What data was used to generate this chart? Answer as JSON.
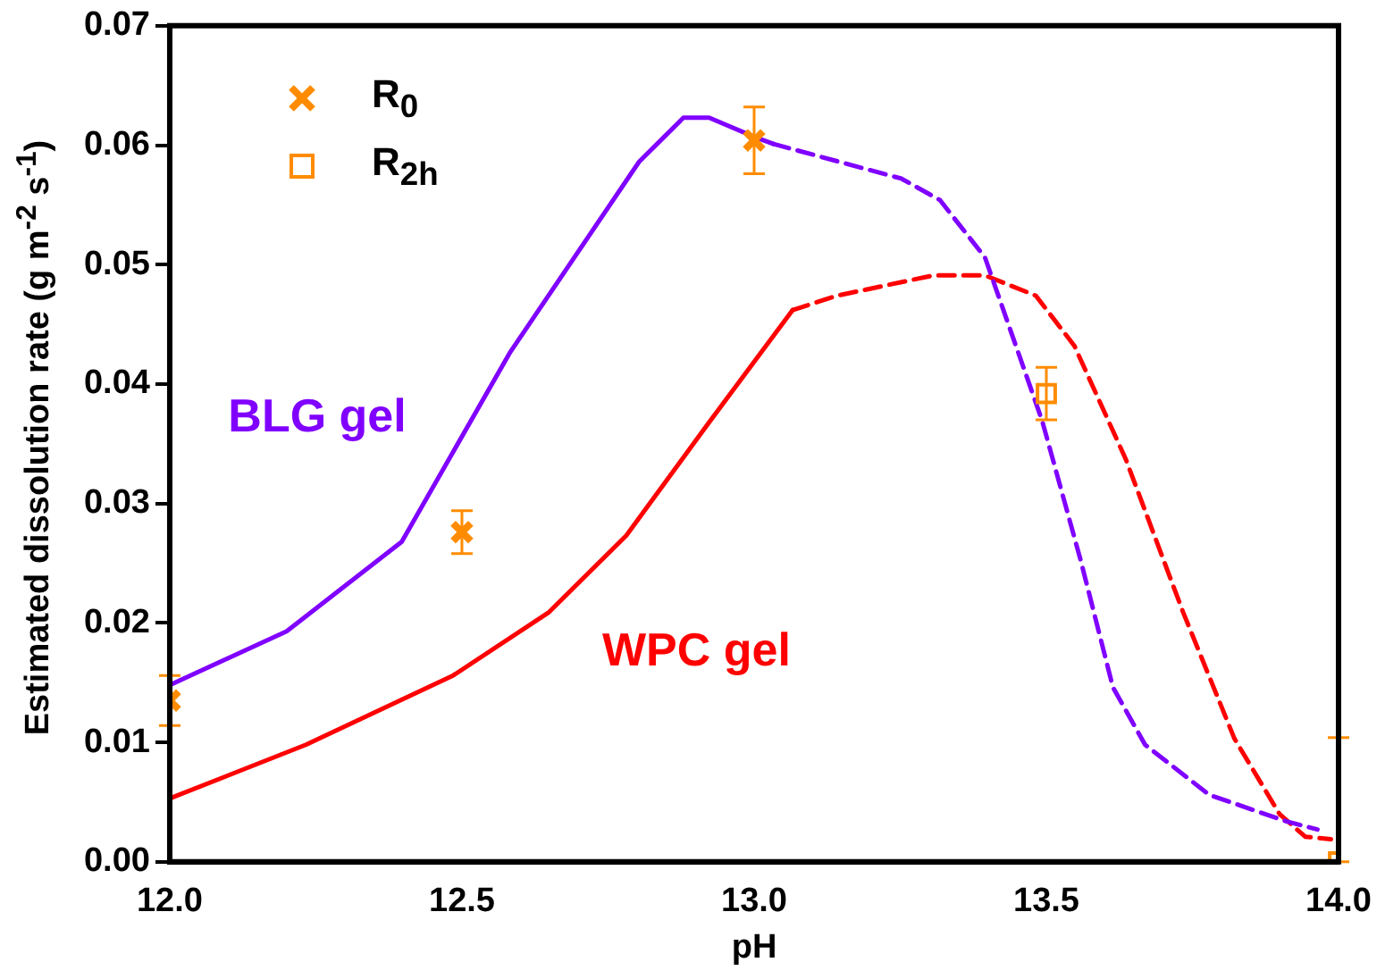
{
  "chart_data": {
    "type": "line",
    "xlabel": "pH",
    "ylabel": "Estimated dissolution rate (g m$^{-2}$ s$^{-1}$)",
    "xlim": [
      12,
      14
    ],
    "xticks": [
      {
        "value": 12,
        "label": "12.0"
      },
      {
        "value": 12.5,
        "label": "12.5"
      },
      {
        "value": 13,
        "label": "13.0"
      },
      {
        "value": 13.5,
        "label": "13.5"
      },
      {
        "value": 14,
        "label": "14.0"
      }
    ],
    "ylim": [
      0,
      0.07
    ],
    "yticks": [
      {
        "value": 0,
        "label": "0.00"
      },
      {
        "value": 0.01,
        "label": "0.01"
      },
      {
        "value": 0.02,
        "label": "0.02"
      },
      {
        "value": 0.03,
        "label": "0.03"
      },
      {
        "value": 0.04,
        "label": "0.04"
      },
      {
        "value": 0.05,
        "label": "0.05"
      },
      {
        "value": 0.06,
        "label": "0.06"
      },
      {
        "value": 0.07,
        "label": "0.07"
      }
    ],
    "grid": false,
    "legend": "top left",
    "series": [
      {
        "name": "BLG gel",
        "type": "line",
        "color": "#8000ff",
        "marker": "none",
        "line_style": "solid",
        "x": [
          12.0,
          12.2,
          12.397,
          12.583,
          12.803,
          12.879,
          12.923,
          13.0,
          13.033
        ],
        "values": [
          0.0148,
          0.0193,
          0.0268,
          0.0427,
          0.0586,
          0.0623,
          0.0623,
          0.0607,
          0.0601
        ]
      },
      {
        "type": "line",
        "color": "#8000ff",
        "marker": "none",
        "line_style": "dashed",
        "x": [
          13.033,
          13.252,
          13.318,
          13.395,
          13.493,
          13.559,
          13.614,
          13.669,
          13.779,
          13.91,
          13.964
        ],
        "values": [
          0.0601,
          0.0572,
          0.0554,
          0.0506,
          0.0369,
          0.0252,
          0.0146,
          0.0098,
          0.0056,
          0.0034,
          0.0027
        ]
      },
      {
        "name": "WPC gel",
        "type": "line",
        "color": "#ff0000",
        "marker": "none",
        "line_style": "solid",
        "x": [
          12.0,
          12.233,
          12.485,
          12.649,
          12.781,
          12.923,
          13.066
        ],
        "values": [
          0.0053,
          0.0098,
          0.0156,
          0.0209,
          0.0273,
          0.0368,
          0.0462
        ]
      },
      {
        "type": "line",
        "color": "#ff0000",
        "marker": "none",
        "line_style": "dashed",
        "x": [
          13.066,
          13.142,
          13.307,
          13.395,
          13.482,
          13.548,
          13.636,
          13.734,
          13.822,
          13.899,
          13.943,
          13.987
        ],
        "values": [
          0.0462,
          0.0474,
          0.0491,
          0.0491,
          0.0474,
          0.0432,
          0.0337,
          0.0209,
          0.0103,
          0.004,
          0.0021,
          0.0019
        ]
      },
      {
        "name": "R$_{0}$",
        "type": "scatter",
        "color": "#ff8c00",
        "marker": "cross",
        "x": [
          12.0,
          12.5,
          13.0
        ],
        "values": [
          0.0135,
          0.0276,
          0.0604
        ],
        "errors": [
          0.0021,
          0.0018,
          0.0028
        ]
      },
      {
        "name": "R$_{2h}$",
        "type": "scatter",
        "color": "#ff8c00",
        "marker": "square",
        "x": [
          13.5,
          14.0
        ],
        "values": [
          0.0392,
          0.0
        ],
        "errors": [
          0.0022,
          [
            0.0,
            0.0104
          ]
        ]
      }
    ]
  }
}
